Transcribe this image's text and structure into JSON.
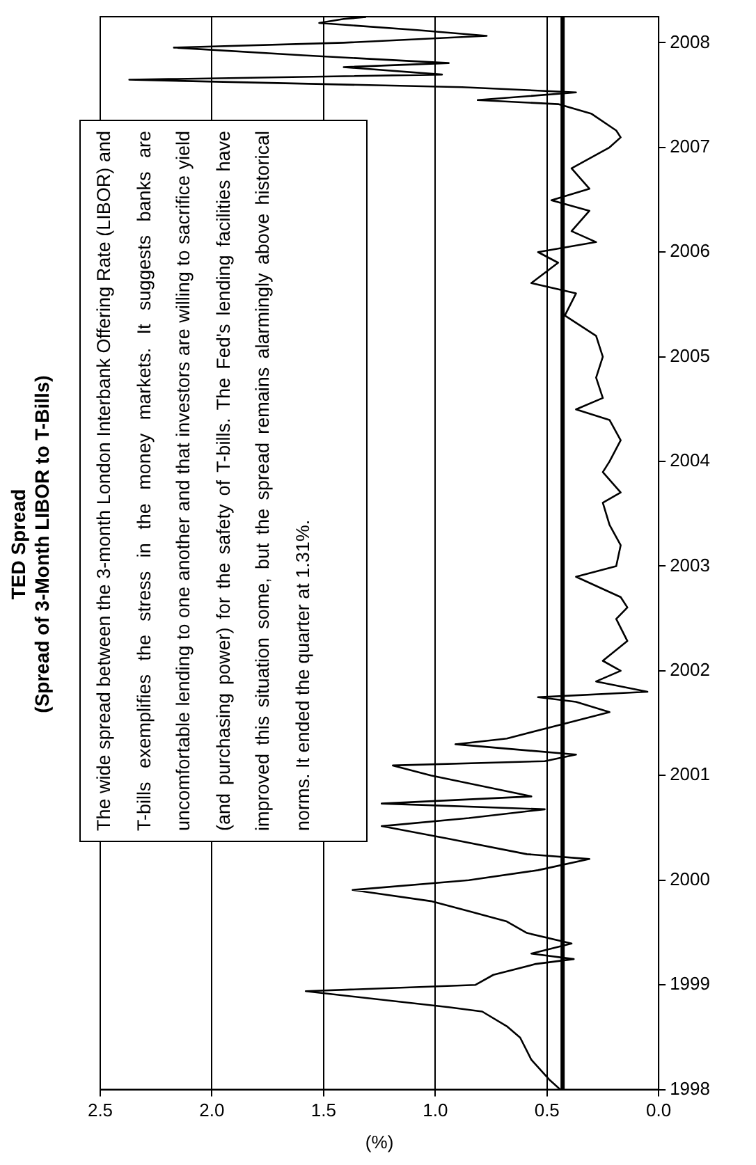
{
  "chart_data": {
    "type": "line",
    "orientation": "horizontal",
    "title": "TED Spread",
    "subtitle": "(Spread of 3-Month LIBOR to T-Bills)",
    "xlabel": "(%)",
    "annotations": [
      "The wide spread between the 3-month London Interbank Offering Rate (LIBOR) and T-bills exemplifies the stress in the money markets.  It suggests banks are uncomfortable lending to one another and that investors are willing to sacrifice yield (and purchasing power) for the safety of T-bills.   The Fed's lending facilities have improved this situation some, but the spread remains alarmingly above historical norms.  It ended the quarter at 1.31%."
    ],
    "x": [
      "1998-01-01",
      "1998-02-05",
      "1998-04-15",
      "1998-07-01",
      "1998-08-10",
      "1998-09-30",
      "1998-10-15",
      "1998-12-10",
      "1999-01-01",
      "1999-02-05",
      "1999-03-15",
      "1999-04-01",
      "1999-04-20",
      "1999-05-25",
      "1999-07-01",
      "1999-08-10",
      "1999-09-15",
      "1999-10-20",
      "1999-11-28",
      "2000-01-01",
      "2000-02-05",
      "2000-03-15",
      "2000-04-01",
      "2000-05-25",
      "2000-07-08",
      "2000-08-05",
      "2000-09-05",
      "2000-09-25",
      "2000-10-20",
      "2001-01-01",
      "2001-02-05",
      "2001-02-20",
      "2001-03-15",
      "2001-04-20",
      "2001-05-10",
      "2001-07-01",
      "2001-08-10",
      "2001-09-15",
      "2001-10-01",
      "2001-10-20",
      "2001-11-25",
      "2002-01-01",
      "2002-02-05",
      "2002-04-15",
      "2002-07-01",
      "2002-08-10",
      "2002-09-15",
      "2002-11-25",
      "2003-01-01",
      "2003-03-15",
      "2003-05-25",
      "2003-08-10",
      "2003-09-15",
      "2003-11-25",
      "2004-01-01",
      "2004-03-15",
      "2004-05-25",
      "2004-07-01",
      "2004-08-10",
      "2004-10-20",
      "2005-01-01",
      "2005-03-15",
      "2005-05-25",
      "2005-08-10",
      "2005-09-15",
      "2005-11-25",
      "2006-01-01",
      "2006-02-05",
      "2006-03-15",
      "2006-05-25",
      "2006-07-01",
      "2006-08-10",
      "2006-10-20",
      "2007-01-01",
      "2007-02-05",
      "2007-03-01",
      "2007-04-28",
      "2007-06-01",
      "2007-06-15",
      "2007-07-12",
      "2007-07-30",
      "2007-08-25",
      "2007-09-12",
      "2007-10-08",
      "2007-10-22",
      "2007-11-18",
      "2007-12-15",
      "2008-01-01",
      "2008-01-25",
      "2008-02-14",
      "2008-03-10",
      "2008-03-24",
      "2008-03-31"
    ],
    "series": [
      {
        "color": "#000000",
        "values": [
          0.44,
          0.49,
          0.57,
          0.62,
          0.68,
          0.79,
          0.94,
          1.58,
          0.82,
          0.74,
          0.55,
          0.38,
          0.57,
          0.39,
          0.59,
          0.68,
          0.85,
          1.02,
          1.37,
          0.85,
          0.54,
          0.31,
          0.59,
          0.94,
          1.24,
          0.85,
          0.51,
          1.24,
          0.57,
          1.02,
          1.19,
          0.51,
          0.37,
          0.91,
          0.68,
          0.42,
          0.22,
          0.37,
          0.54,
          0.05,
          0.28,
          0.17,
          0.25,
          0.14,
          0.19,
          0.14,
          0.17,
          0.37,
          0.19,
          0.17,
          0.22,
          0.25,
          0.17,
          0.25,
          0.22,
          0.17,
          0.22,
          0.37,
          0.25,
          0.28,
          0.25,
          0.28,
          0.42,
          0.37,
          0.57,
          0.45,
          0.54,
          0.28,
          0.39,
          0.31,
          0.48,
          0.31,
          0.39,
          0.22,
          0.17,
          0.19,
          0.3,
          0.45,
          0.81,
          0.37,
          0.88,
          2.37,
          0.97,
          1.41,
          0.94,
          1.59,
          2.17,
          1.41,
          0.77,
          1.08,
          1.52,
          1.41,
          1.31
        ]
      }
    ],
    "ylim": [
      "1998-01-01",
      "2008-04-01"
    ],
    "yticks": [
      {
        "value": "1998-01-01",
        "label": "1998"
      },
      {
        "value": "1999-01-01",
        "label": "1999"
      },
      {
        "value": "2000-01-01",
        "label": "2000"
      },
      {
        "value": "2001-01-01",
        "label": "2001"
      },
      {
        "value": "2002-01-01",
        "label": "2002"
      },
      {
        "value": "2003-01-01",
        "label": "2003"
      },
      {
        "value": "2004-01-01",
        "label": "2004"
      },
      {
        "value": "2005-01-01",
        "label": "2005"
      },
      {
        "value": "2006-01-01",
        "label": "2006"
      },
      {
        "value": "2007-01-01",
        "label": "2007"
      },
      {
        "value": "2008-01-01",
        "label": "2008"
      }
    ],
    "xlim": [
      2.5,
      0
    ],
    "xticks": [
      {
        "value": 0,
        "label": "0.0"
      },
      {
        "value": 0.5,
        "label": "0.5"
      },
      {
        "value": 1,
        "label": "1.0"
      },
      {
        "value": 1.5,
        "label": "1.5"
      },
      {
        "value": 2,
        "label": "2.0"
      },
      {
        "value": 2.5,
        "label": "2.5"
      }
    ],
    "grid": "x",
    "ref_lines": [
      {
        "axis": "x",
        "value": 0.43,
        "color": "#000000"
      }
    ]
  }
}
